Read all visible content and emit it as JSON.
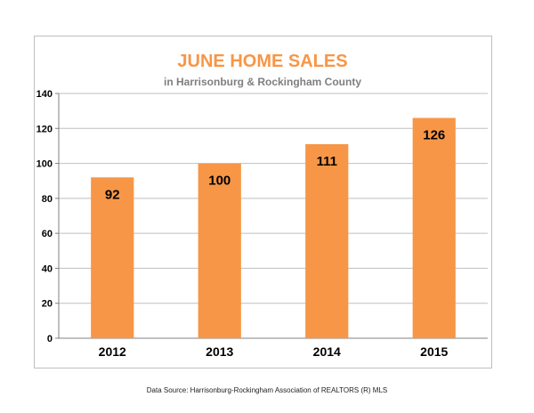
{
  "chart_data": {
    "type": "bar",
    "title": "JUNE HOME SALES",
    "subtitle": "in Harrisonburg & Rockingham County",
    "categories": [
      "2012",
      "2013",
      "2014",
      "2015"
    ],
    "values": [
      92,
      100,
      111,
      126
    ],
    "data_labels": [
      "92",
      "100",
      "111",
      "126"
    ],
    "ylim": [
      0,
      140
    ],
    "yticks": [
      0,
      20,
      40,
      60,
      80,
      100,
      120,
      140
    ],
    "ytick_labels": [
      "0",
      "20",
      "40",
      "60",
      "80",
      "100",
      "120",
      "140"
    ],
    "grid": true,
    "legend": "none",
    "colors": {
      "bar": "#f79646",
      "title": "#f79646",
      "subtitle": "#7f7f7f",
      "grid": "#bfbfbf",
      "text": "#000000"
    }
  },
  "footer": {
    "source": "Data Source: Harrisonburg-Rockingham Association of REALTORS (R) MLS"
  }
}
